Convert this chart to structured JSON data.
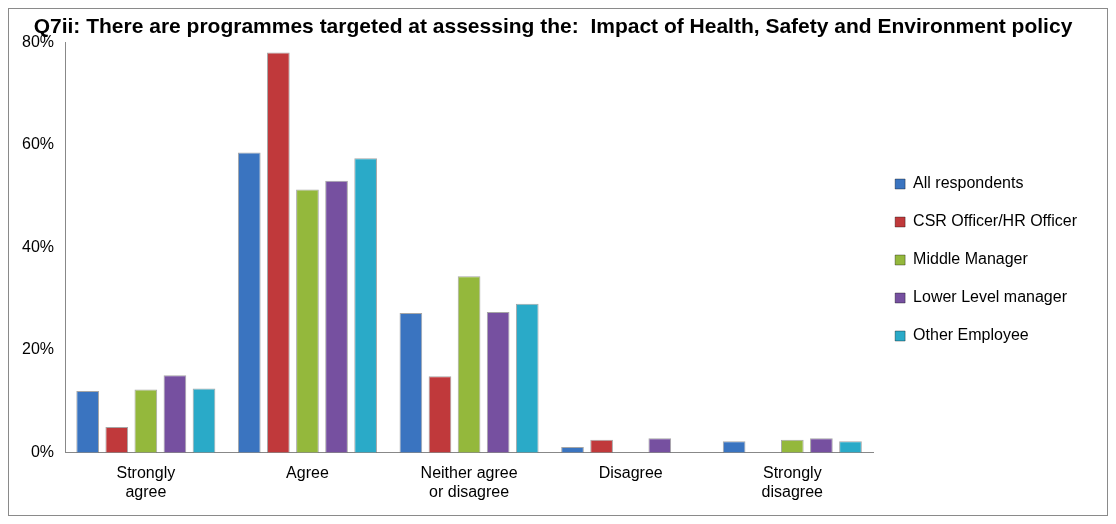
{
  "chart_data": {
    "type": "bar",
    "title": "Q7ii: There are programmes targeted at assessing the:  Impact of Health, Safety and Environment policy",
    "categories": [
      [
        "Strongly",
        "agree"
      ],
      "Agree",
      [
        "Neither agree",
        "or disagree"
      ],
      "Disagree",
      [
        "Strongly",
        "disagree"
      ]
    ],
    "series": [
      {
        "name": "All respondents",
        "color": "#3a74c0",
        "values": [
          12,
          58.5,
          27.2,
          1.1,
          2.2
        ]
      },
      {
        "name": "CSR Officer/HR Officer",
        "color": "#c0393b",
        "values": [
          5,
          78,
          14.9,
          2.5,
          0
        ]
      },
      {
        "name": "Middle Manager",
        "color": "#94b83c",
        "values": [
          12.3,
          51.3,
          34.4,
          0,
          2.5
        ]
      },
      {
        "name": "Lower Level manager",
        "color": "#7650a0",
        "values": [
          15.1,
          53,
          27.4,
          2.8,
          2.8
        ]
      },
      {
        "name": "Other Employee",
        "color": "#2aaac8",
        "values": [
          12.5,
          57.4,
          29,
          0,
          2.2
        ]
      }
    ],
    "ylim": [
      0,
      80
    ],
    "yticks": [
      {
        "value": 0,
        "label": "0%"
      },
      {
        "value": 20,
        "label": "20%"
      },
      {
        "value": 40,
        "label": "40%"
      },
      {
        "value": 60,
        "label": "60%"
      },
      {
        "value": 80,
        "label": "80%"
      }
    ],
    "grid": false,
    "legend": "right"
  }
}
